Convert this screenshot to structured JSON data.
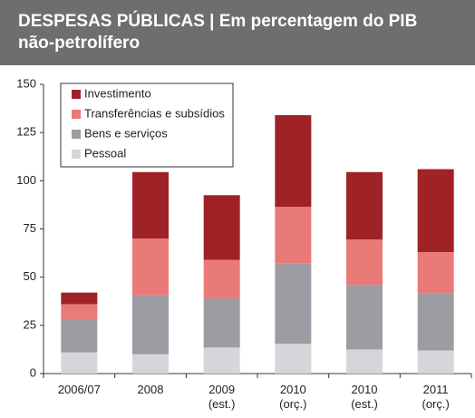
{
  "chart_data": {
    "type": "stacked_bar",
    "title": "DESPESAS PÚBLICAS | Em percentagem do PIB não-petrolífero",
    "categories": [
      "2006/07",
      "2008",
      "2009\n(est.)",
      "2010\n(orç.)",
      "2010\n(est.)",
      "2011\n(orç.)"
    ],
    "series": [
      {
        "name": "Pessoal",
        "color": "#d6d6da",
        "values": [
          11,
          10,
          13.5,
          15.5,
          12.5,
          12
        ]
      },
      {
        "name": "Bens e serviços",
        "color": "#9d9ca3",
        "values": [
          17,
          30.5,
          25.5,
          41.5,
          33.5,
          29.5
        ]
      },
      {
        "name": "Transferências e subsídios",
        "color": "#e97a78",
        "values": [
          8,
          29.5,
          20,
          29.5,
          23.5,
          21.5
        ]
      },
      {
        "name": "Investimento",
        "color": "#9f2227",
        "values": [
          6,
          34.5,
          33.5,
          47.5,
          35,
          43
        ]
      }
    ],
    "ylim": [
      0,
      150
    ],
    "yticks": [
      0,
      25,
      50,
      75,
      100,
      125,
      150
    ],
    "legend": "top-left"
  }
}
